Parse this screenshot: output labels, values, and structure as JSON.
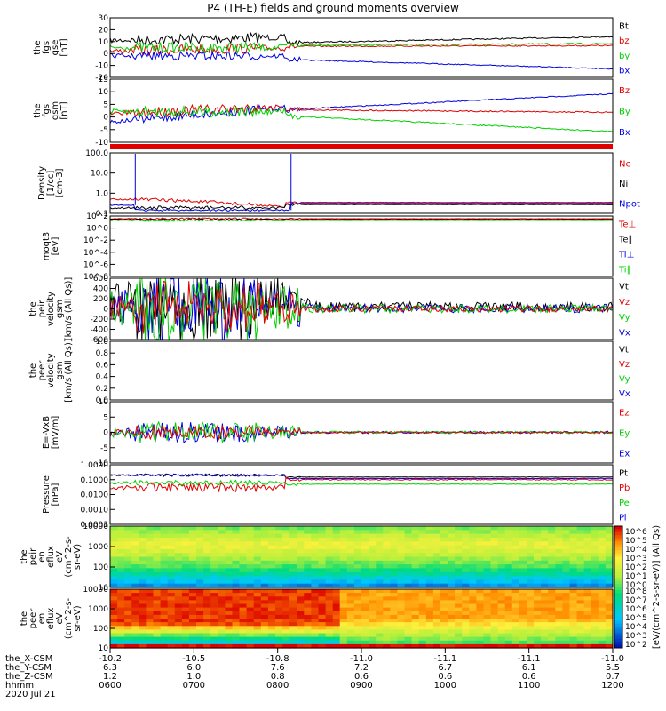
{
  "title": "P4 (TH-E) fields and ground moments overview",
  "date": "2020 Jul 21",
  "colors": {
    "black": "#000000",
    "red": "#e00000",
    "green": "#00d000",
    "blue": "#0000e0"
  },
  "footer": {
    "rows": [
      {
        "label": "the_X-CSM",
        "values": [
          "-10.2",
          "-10.5",
          "-10.8",
          "-11.0",
          "-11.1",
          "-11.1",
          "-11.0"
        ]
      },
      {
        "label": "the_Y-CSM",
        "values": [
          "6.3",
          "6.0",
          "7.6",
          "7.2",
          "6.7",
          "6.1",
          "5.5"
        ]
      },
      {
        "label": "the_Z-CSM",
        "values": [
          "1.2",
          "1.0",
          "0.8",
          "0.6",
          "0.6",
          "0.6",
          "0.7"
        ]
      },
      {
        "label": "hhmm",
        "values": [
          "0600",
          "0700",
          "0800",
          "0900",
          "1000",
          "1100",
          "1200"
        ]
      }
    ]
  },
  "colorbar": {
    "label": "[eV/(cm^2-s-sr-eV)] (All Qs)",
    "ticks_top": [
      "10^6",
      "10^5",
      "10^4",
      "10^3",
      "10^2",
      "10^1",
      "10^0"
    ],
    "ticks_bottom": [
      "10^8",
      "10^7",
      "10^6",
      "10^5",
      "10^4",
      "10^3",
      "10^2"
    ]
  },
  "chart_data": [
    {
      "type": "line",
      "ylabel": [
        "the",
        "fgs",
        "gse",
        "[nT]"
      ],
      "yticks": [
        "30",
        "20",
        "10",
        "0",
        "-10",
        "-20"
      ],
      "ylim": [
        -20,
        30
      ],
      "series": [
        {
          "name": "Bt",
          "color": "#000000"
        },
        {
          "name": "bz",
          "color": "#e00000"
        },
        {
          "name": "by",
          "color": "#00d000"
        },
        {
          "name": "bx",
          "color": "#0000e0"
        }
      ]
    },
    {
      "type": "line",
      "ylabel": [
        "the",
        "fgs",
        "gsm",
        "[nT]"
      ],
      "yticks": [
        "15",
        "10",
        "5",
        "0",
        "-5",
        "-10"
      ],
      "ylim": [
        -13,
        18
      ],
      "series": [
        {
          "name": "Bz",
          "color": "#e00000"
        },
        {
          "name": "By",
          "color": "#00d000"
        },
        {
          "name": "Bx",
          "color": "#0000e0"
        }
      ]
    },
    {
      "type": "line",
      "ylabel": [
        "Density",
        "[1/cc]",
        "[cm-3]"
      ],
      "yticks": [
        "100.0",
        "10.0",
        "1.0",
        "0.1"
      ],
      "ylim": [
        0.1,
        200
      ],
      "yscale": "log",
      "series": [
        {
          "name": "Ne",
          "color": "#e00000"
        },
        {
          "name": "Ni",
          "color": "#000000"
        },
        {
          "name": "Npot",
          "color": "#0000e0"
        }
      ]
    },
    {
      "type": "line",
      "ylabel": [
        "moqt3",
        "[eV]"
      ],
      "yticks": [
        "10^2",
        "10^0",
        "10^-2",
        "10^-4",
        "10^-6",
        "10^-8"
      ],
      "yscale": "log",
      "series": [
        {
          "name": "Te⊥",
          "color": "#e00000"
        },
        {
          "name": "Te∥",
          "color": "#000000"
        },
        {
          "name": "Ti⊥",
          "color": "#0000e0"
        },
        {
          "name": "Ti∥",
          "color": "#00d000"
        }
      ]
    },
    {
      "type": "line",
      "ylabel": [
        "the",
        "peir",
        "velocity",
        "gsm",
        "[km/s (All Qs)]"
      ],
      "yticks": [
        "600",
        "400",
        "200",
        "0",
        "-200",
        "-400",
        "-600"
      ],
      "ylim": [
        -600,
        600
      ],
      "series": [
        {
          "name": "Vt",
          "color": "#000000"
        },
        {
          "name": "Vz",
          "color": "#e00000"
        },
        {
          "name": "Vy",
          "color": "#00d000"
        },
        {
          "name": "Vx",
          "color": "#0000e0"
        }
      ]
    },
    {
      "type": "line",
      "ylabel": [
        "the",
        "peer",
        "velocity",
        "gsm",
        "[km/s (All Qs)]"
      ],
      "yticks": [
        "1.0",
        "0.8",
        "0.6",
        "0.4",
        "0.2",
        "0.0"
      ],
      "ylim": [
        0,
        1
      ],
      "series": [
        {
          "name": "Vt",
          "color": "#000000"
        },
        {
          "name": "Vz",
          "color": "#e00000"
        },
        {
          "name": "Vy",
          "color": "#00d000"
        },
        {
          "name": "Vx",
          "color": "#0000e0"
        }
      ]
    },
    {
      "type": "line",
      "ylabel": [
        "E=-VxB",
        "[mV/m]"
      ],
      "yticks": [
        "10",
        "5",
        "0",
        "-5",
        "-10"
      ],
      "ylim": [
        -10,
        10
      ],
      "series": [
        {
          "name": "Ez",
          "color": "#e00000"
        },
        {
          "name": "Ey",
          "color": "#00d000"
        },
        {
          "name": "Ex",
          "color": "#0000e0"
        }
      ]
    },
    {
      "type": "line",
      "ylabel": [
        "Pressure",
        "[nPa]"
      ],
      "yticks": [
        "1.0000",
        "0.1000",
        "0.0100",
        "0.0010",
        "0.0001"
      ],
      "yscale": "log",
      "series": [
        {
          "name": "Pt",
          "color": "#000000"
        },
        {
          "name": "Pb",
          "color": "#e00000"
        },
        {
          "name": "Pe",
          "color": "#00d000"
        },
        {
          "name": "Pi",
          "color": "#0000e0"
        }
      ]
    },
    {
      "type": "heatmap",
      "ylabel": [
        "the",
        "peir",
        "en",
        "eflux",
        "eV",
        "(cm^2-s-",
        "sr-eV)"
      ],
      "yticks": [
        "10000",
        "1000",
        "100",
        "10"
      ],
      "yscale": "log"
    },
    {
      "type": "heatmap",
      "ylabel": [
        "the",
        "peer",
        "en",
        "eflux",
        "eV",
        "(cm^2-s-",
        "sr-eV)"
      ],
      "yticks": [
        "10000",
        "1000",
        "100",
        "10"
      ],
      "yscale": "log"
    }
  ]
}
